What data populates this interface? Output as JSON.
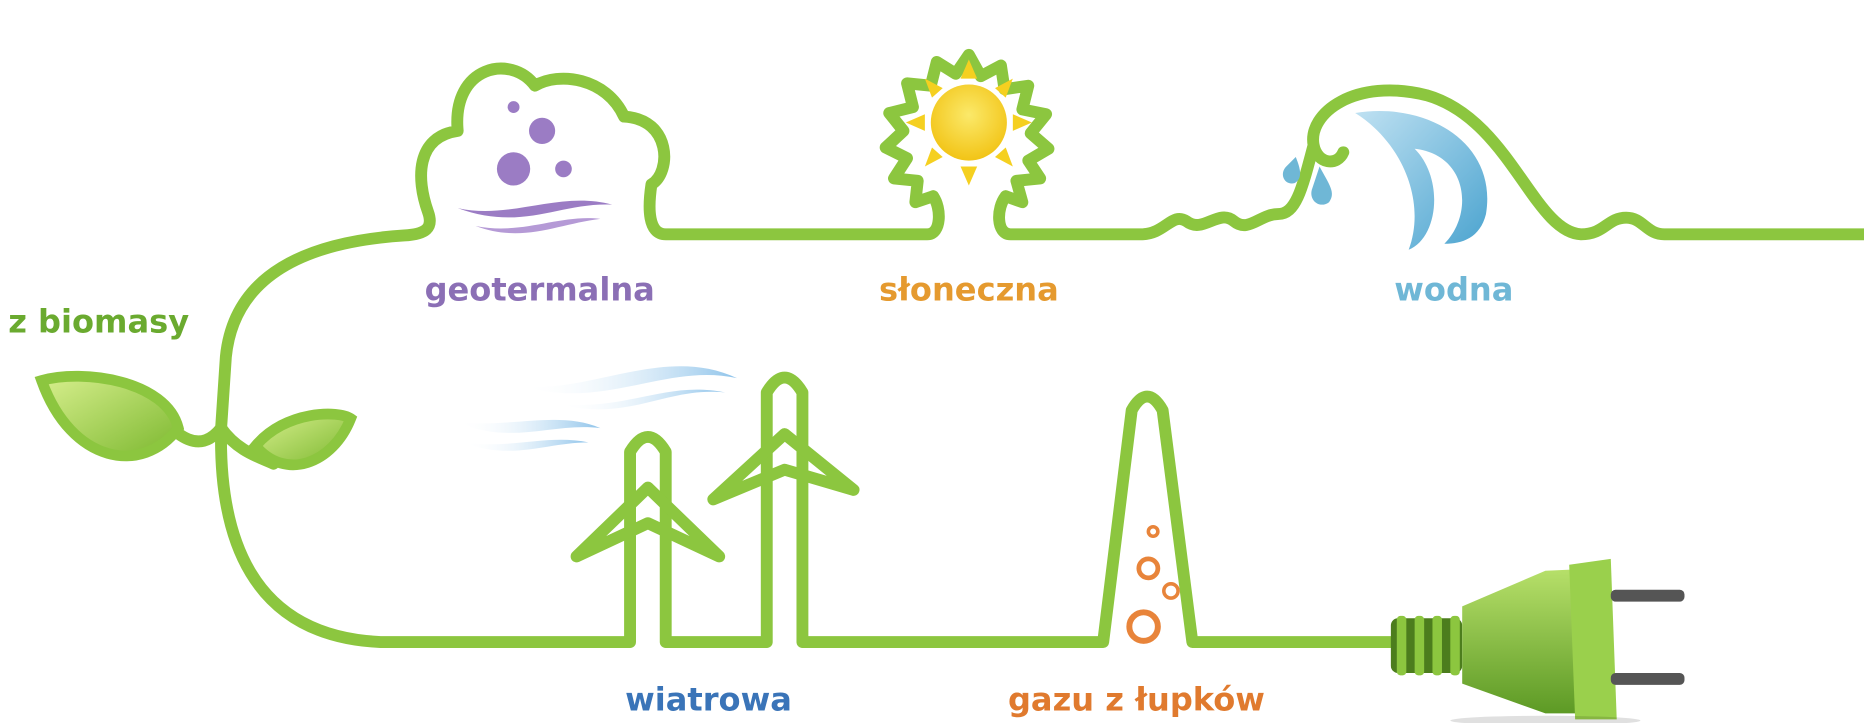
{
  "labels": [
    "z biomasy",
    "geotermalna",
    "słoneczna",
    "wodna",
    "wiatrowa",
    "gazu z łupków"
  ]
}
